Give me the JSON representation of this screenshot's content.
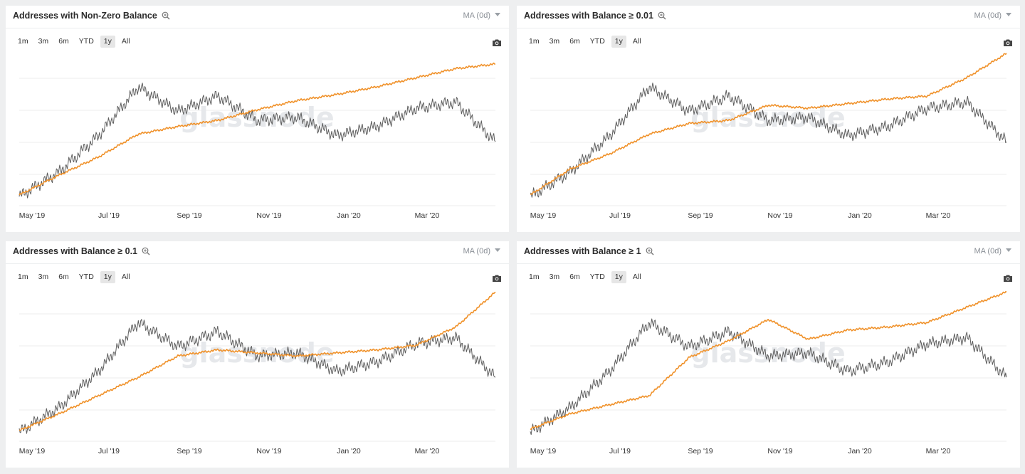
{
  "range_buttons": [
    "1m",
    "3m",
    "6m",
    "YTD",
    "1y",
    "All"
  ],
  "active_range": "1y",
  "ma_label": "MA (0d)",
  "watermark": "glassnode",
  "colors": {
    "gray_line": "#5e5e5e",
    "orange_line": "#f0922b",
    "gridline": "#ececec",
    "watermark": "#e6e8eb"
  },
  "icons": {
    "title": "zoom-in-icon",
    "ma": "caret-down-icon",
    "toolbar": "camera-icon"
  },
  "chart_data": [
    {
      "type": "line",
      "title": "Addresses with Non-Zero Balance",
      "x_ticks": [
        "May '19",
        "Jul '19",
        "Sep '19",
        "Nov '19",
        "Jan '20",
        "Mar '20"
      ],
      "x_range": [
        "Apr '19",
        "Apr '20"
      ],
      "grid": "horizontal",
      "y_scale": "relative (no y-axis labels shown)",
      "series": [
        {
          "color": "#5e5e5e",
          "x": [
            "Apr '19",
            "May '19",
            "Jun '19",
            "Jul '19",
            "Aug '19",
            "Sep '19",
            "Oct '19",
            "Nov '19",
            "Dec '19",
            "Jan '20",
            "Feb '20",
            "Mar '20",
            "Apr '20"
          ],
          "values": [
            0.06,
            0.22,
            0.46,
            0.78,
            0.62,
            0.72,
            0.56,
            0.58,
            0.46,
            0.52,
            0.64,
            0.68,
            0.42
          ]
        },
        {
          "color": "#f0922b",
          "x": [
            "Apr '19",
            "May '19",
            "Jun '19",
            "Jul '19",
            "Aug '19",
            "Sep '19",
            "Oct '19",
            "Nov '19",
            "Dec '19",
            "Jan '20",
            "Feb '20",
            "Mar '20",
            "Apr '20"
          ],
          "values": [
            0.07,
            0.2,
            0.32,
            0.47,
            0.52,
            0.56,
            0.63,
            0.69,
            0.73,
            0.78,
            0.84,
            0.9,
            0.93
          ]
        }
      ]
    },
    {
      "type": "line",
      "title": "Addresses with Balance ≥ 0.01",
      "x_ticks": [
        "May '19",
        "Jul '19",
        "Sep '19",
        "Nov '19",
        "Jan '20",
        "Mar '20"
      ],
      "x_range": [
        "Apr '19",
        "Apr '20"
      ],
      "grid": "horizontal",
      "y_scale": "relative (no y-axis labels shown)",
      "series": [
        {
          "color": "#5e5e5e",
          "x": [
            "Apr '19",
            "May '19",
            "Jun '19",
            "Jul '19",
            "Aug '19",
            "Sep '19",
            "Oct '19",
            "Nov '19",
            "Dec '19",
            "Jan '20",
            "Feb '20",
            "Mar '20",
            "Apr '20"
          ],
          "values": [
            0.06,
            0.22,
            0.46,
            0.78,
            0.62,
            0.72,
            0.56,
            0.58,
            0.46,
            0.52,
            0.64,
            0.68,
            0.42
          ]
        },
        {
          "color": "#f0922b",
          "x": [
            "Apr '19",
            "May '19",
            "Jun '19",
            "Jul '19",
            "Aug '19",
            "Sep '19",
            "Oct '19",
            "Nov '19",
            "Dec '19",
            "Jan '20",
            "Feb '20",
            "Mar '20",
            "Apr '20"
          ],
          "values": [
            0.07,
            0.24,
            0.34,
            0.47,
            0.54,
            0.56,
            0.66,
            0.64,
            0.67,
            0.7,
            0.72,
            0.84,
            1.0
          ]
        }
      ]
    },
    {
      "type": "line",
      "title": "Addresses with Balance ≥ 0.1",
      "x_ticks": [
        "May '19",
        "Jul '19",
        "Sep '19",
        "Nov '19",
        "Jan '20",
        "Mar '20"
      ],
      "x_range": [
        "Apr '19",
        "Apr '20"
      ],
      "grid": "horizontal",
      "y_scale": "relative (no y-axis labels shown)",
      "series": [
        {
          "color": "#5e5e5e",
          "x": [
            "Apr '19",
            "May '19",
            "Jun '19",
            "Jul '19",
            "Aug '19",
            "Sep '19",
            "Oct '19",
            "Nov '19",
            "Dec '19",
            "Jan '20",
            "Feb '20",
            "Mar '20",
            "Apr '20"
          ],
          "values": [
            0.06,
            0.22,
            0.46,
            0.78,
            0.62,
            0.72,
            0.56,
            0.58,
            0.46,
            0.52,
            0.64,
            0.68,
            0.42
          ]
        },
        {
          "color": "#f0922b",
          "x": [
            "Apr '19",
            "May '19",
            "Jun '19",
            "Jul '19",
            "Aug '19",
            "Sep '19",
            "Oct '19",
            "Nov '19",
            "Dec '19",
            "Jan '20",
            "Feb '20",
            "Mar '20",
            "Apr '20"
          ],
          "values": [
            0.07,
            0.18,
            0.3,
            0.42,
            0.56,
            0.6,
            0.58,
            0.56,
            0.58,
            0.6,
            0.63,
            0.75,
            0.98
          ]
        }
      ]
    },
    {
      "type": "line",
      "title": "Addresses with Balance ≥ 1",
      "x_ticks": [
        "May '19",
        "Jul '19",
        "Sep '19",
        "Nov '19",
        "Jan '20",
        "Mar '20"
      ],
      "x_range": [
        "Apr '19",
        "Apr '20"
      ],
      "grid": "horizontal",
      "y_scale": "relative (no y-axis labels shown)",
      "series": [
        {
          "color": "#5e5e5e",
          "x": [
            "Apr '19",
            "May '19",
            "Jun '19",
            "Jul '19",
            "Aug '19",
            "Sep '19",
            "Oct '19",
            "Nov '19",
            "Dec '19",
            "Jan '20",
            "Feb '20",
            "Mar '20",
            "Apr '20"
          ],
          "values": [
            0.06,
            0.22,
            0.46,
            0.78,
            0.62,
            0.72,
            0.56,
            0.58,
            0.46,
            0.52,
            0.64,
            0.68,
            0.42
          ]
        },
        {
          "color": "#f0922b",
          "x": [
            "Apr '19",
            "May '19",
            "Jun '19",
            "Jul '19",
            "Aug '19",
            "Sep '19",
            "Oct '19",
            "Nov '19",
            "Dec '19",
            "Jan '20",
            "Feb '20",
            "Mar '20",
            "Apr '20"
          ],
          "values": [
            0.08,
            0.18,
            0.24,
            0.3,
            0.55,
            0.66,
            0.8,
            0.67,
            0.73,
            0.75,
            0.78,
            0.88,
            0.98
          ]
        }
      ]
    }
  ]
}
